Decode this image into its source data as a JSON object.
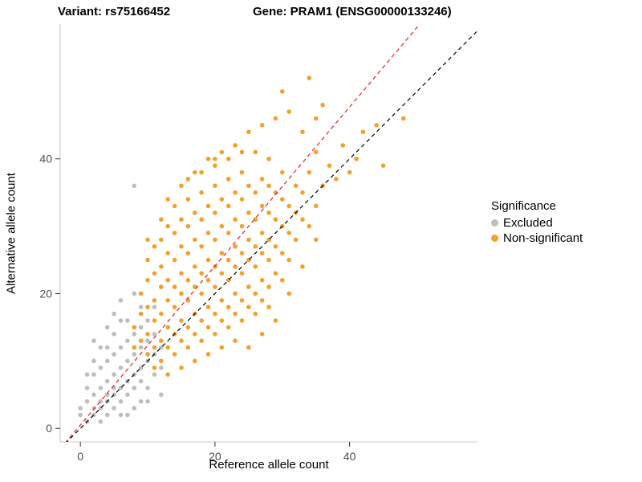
{
  "titles": {
    "left": "Variant: rs75166452",
    "right": "Gene: PRAM1 (ENSG00000133246)"
  },
  "legend": {
    "title": "Significance",
    "items": [
      {
        "label": "Excluded",
        "color": "#BEBEBE"
      },
      {
        "label": "Non-significant",
        "color": "#F5A02A"
      }
    ]
  },
  "chart_data": {
    "type": "scatter",
    "title": "Variant: rs75166452 | Gene: PRAM1 (ENSG00000133246)",
    "xlabel": "Reference allele count",
    "ylabel": "Alternative allele count",
    "xlim": [
      -3,
      59
    ],
    "ylim": [
      -2,
      60
    ],
    "x_ticks": [
      0,
      20,
      40
    ],
    "y_ticks": [
      0,
      20,
      40
    ],
    "grid": false,
    "legend_position": "right",
    "point_radius": 2.8,
    "axis_line_color": "#C9C9C9",
    "tick_color": "#333333",
    "tick_label_color": "#4D4D4D",
    "lines": [
      {
        "name": "identity-line",
        "color": "#000000",
        "dash": "5,4",
        "slope": 1,
        "intercept": 0
      },
      {
        "name": "fit-line",
        "color": "#E02020",
        "dash": "5,4",
        "slope": 1.18,
        "intercept": 0.5
      }
    ],
    "series": [
      {
        "name": "Excluded",
        "color": "#BEBEBE",
        "points": [
          [
            0,
            2
          ],
          [
            0,
            3
          ],
          [
            1,
            1
          ],
          [
            1,
            4
          ],
          [
            1,
            6
          ],
          [
            2,
            2
          ],
          [
            2,
            5
          ],
          [
            2,
            8
          ],
          [
            2,
            3
          ],
          [
            3,
            3
          ],
          [
            3,
            6
          ],
          [
            3,
            9
          ],
          [
            3,
            1
          ],
          [
            4,
            4
          ],
          [
            4,
            7
          ],
          [
            4,
            10
          ],
          [
            4,
            2
          ],
          [
            4,
            12
          ],
          [
            5,
            5
          ],
          [
            5,
            8
          ],
          [
            5,
            3
          ],
          [
            5,
            11
          ],
          [
            5,
            14
          ],
          [
            6,
            6
          ],
          [
            6,
            9
          ],
          [
            6,
            4
          ],
          [
            6,
            12
          ],
          [
            6,
            2
          ],
          [
            7,
            7
          ],
          [
            7,
            10
          ],
          [
            7,
            5
          ],
          [
            7,
            13
          ],
          [
            7,
            16
          ],
          [
            8,
            8
          ],
          [
            8,
            11
          ],
          [
            8,
            6
          ],
          [
            8,
            14
          ],
          [
            8,
            3
          ],
          [
            8,
            36
          ],
          [
            9,
            9
          ],
          [
            9,
            12
          ],
          [
            9,
            7
          ],
          [
            9,
            15
          ],
          [
            9,
            18
          ],
          [
            10,
            10
          ],
          [
            10,
            6
          ],
          [
            10,
            13
          ],
          [
            10,
            4
          ],
          [
            11,
            8
          ],
          [
            11,
            11
          ],
          [
            11,
            14
          ],
          [
            12,
            9
          ],
          [
            12,
            5
          ],
          [
            3,
            12
          ],
          [
            2,
            10
          ],
          [
            4,
            15
          ],
          [
            5,
            17
          ],
          [
            6,
            16
          ],
          [
            7,
            2
          ],
          [
            9,
            4
          ],
          [
            10,
            16
          ],
          [
            11,
            18
          ],
          [
            12,
            12
          ],
          [
            1,
            8
          ],
          [
            2,
            13
          ],
          [
            6,
            19
          ],
          [
            8,
            20
          ],
          [
            5,
            6
          ],
          [
            4,
            5
          ],
          [
            3,
            4
          ]
        ]
      },
      {
        "name": "Non-significant",
        "color": "#F5A02A",
        "points": [
          [
            8,
            12
          ],
          [
            8,
            15
          ],
          [
            9,
            13
          ],
          [
            9,
            17
          ],
          [
            9,
            20
          ],
          [
            10,
            11
          ],
          [
            10,
            14
          ],
          [
            10,
            18
          ],
          [
            10,
            22
          ],
          [
            10,
            25
          ],
          [
            11,
            12
          ],
          [
            11,
            16
          ],
          [
            11,
            19
          ],
          [
            11,
            23
          ],
          [
            11,
            27
          ],
          [
            12,
            10
          ],
          [
            12,
            13
          ],
          [
            12,
            17
          ],
          [
            12,
            21
          ],
          [
            12,
            24
          ],
          [
            12,
            28
          ],
          [
            13,
            12
          ],
          [
            13,
            15
          ],
          [
            13,
            19
          ],
          [
            13,
            22
          ],
          [
            13,
            26
          ],
          [
            13,
            30
          ],
          [
            14,
            11
          ],
          [
            14,
            14
          ],
          [
            14,
            18
          ],
          [
            14,
            21
          ],
          [
            14,
            25
          ],
          [
            14,
            29
          ],
          [
            15,
            13
          ],
          [
            15,
            16
          ],
          [
            15,
            20
          ],
          [
            15,
            23
          ],
          [
            15,
            27
          ],
          [
            15,
            31
          ],
          [
            16,
            12
          ],
          [
            16,
            15
          ],
          [
            16,
            19
          ],
          [
            16,
            22
          ],
          [
            16,
            26
          ],
          [
            16,
            30
          ],
          [
            16,
            34
          ],
          [
            17,
            14
          ],
          [
            17,
            17
          ],
          [
            17,
            21
          ],
          [
            17,
            24
          ],
          [
            17,
            28
          ],
          [
            17,
            32
          ],
          [
            18,
            13
          ],
          [
            18,
            16
          ],
          [
            18,
            20
          ],
          [
            18,
            23
          ],
          [
            18,
            27
          ],
          [
            18,
            31
          ],
          [
            18,
            35
          ],
          [
            19,
            15
          ],
          [
            19,
            18
          ],
          [
            19,
            22
          ],
          [
            19,
            25
          ],
          [
            19,
            29
          ],
          [
            19,
            33
          ],
          [
            20,
            14
          ],
          [
            20,
            17
          ],
          [
            20,
            21
          ],
          [
            20,
            24
          ],
          [
            20,
            28
          ],
          [
            20,
            32
          ],
          [
            20,
            36
          ],
          [
            20,
            40
          ],
          [
            21,
            16
          ],
          [
            21,
            19
          ],
          [
            21,
            23
          ],
          [
            21,
            26
          ],
          [
            21,
            30
          ],
          [
            21,
            34
          ],
          [
            22,
            15
          ],
          [
            22,
            18
          ],
          [
            22,
            22
          ],
          [
            22,
            25
          ],
          [
            22,
            29
          ],
          [
            22,
            33
          ],
          [
            22,
            37
          ],
          [
            23,
            17
          ],
          [
            23,
            20
          ],
          [
            23,
            24
          ],
          [
            23,
            27
          ],
          [
            23,
            31
          ],
          [
            23,
            35
          ],
          [
            24,
            16
          ],
          [
            24,
            19
          ],
          [
            24,
            23
          ],
          [
            24,
            26
          ],
          [
            24,
            30
          ],
          [
            24,
            34
          ],
          [
            24,
            38
          ],
          [
            25,
            18
          ],
          [
            25,
            21
          ],
          [
            25,
            25
          ],
          [
            25,
            28
          ],
          [
            25,
            32
          ],
          [
            25,
            36
          ],
          [
            26,
            17
          ],
          [
            26,
            20
          ],
          [
            26,
            24
          ],
          [
            26,
            27
          ],
          [
            26,
            31
          ],
          [
            26,
            35
          ],
          [
            27,
            19
          ],
          [
            27,
            22
          ],
          [
            27,
            26
          ],
          [
            27,
            29
          ],
          [
            27,
            33
          ],
          [
            27,
            37
          ],
          [
            28,
            18
          ],
          [
            28,
            21
          ],
          [
            28,
            25
          ],
          [
            28,
            28
          ],
          [
            28,
            32
          ],
          [
            28,
            36
          ],
          [
            29,
            23
          ],
          [
            29,
            27
          ],
          [
            29,
            31
          ],
          [
            29,
            35
          ],
          [
            30,
            22
          ],
          [
            30,
            26
          ],
          [
            30,
            30
          ],
          [
            30,
            34
          ],
          [
            30,
            38
          ],
          [
            31,
            25
          ],
          [
            31,
            29
          ],
          [
            31,
            33
          ],
          [
            32,
            28
          ],
          [
            32,
            32
          ],
          [
            32,
            36
          ],
          [
            33,
            31
          ],
          [
            33,
            35
          ],
          [
            34,
            30
          ],
          [
            34,
            38
          ],
          [
            35,
            33
          ],
          [
            35,
            41
          ],
          [
            36,
            36
          ],
          [
            37,
            39
          ],
          [
            38,
            37
          ],
          [
            39,
            42
          ],
          [
            40,
            38
          ],
          [
            41,
            40
          ],
          [
            34,
            52
          ],
          [
            36,
            48
          ],
          [
            31,
            47
          ],
          [
            28,
            40
          ],
          [
            26,
            41
          ],
          [
            24,
            41
          ],
          [
            22,
            40
          ],
          [
            20,
            39
          ],
          [
            18,
            38
          ],
          [
            45,
            39
          ],
          [
            44,
            45
          ],
          [
            42,
            44
          ],
          [
            48,
            46
          ],
          [
            16,
            37
          ],
          [
            14,
            33
          ],
          [
            12,
            31
          ],
          [
            10,
            28
          ],
          [
            13,
            34
          ],
          [
            15,
            36
          ],
          [
            17,
            38
          ],
          [
            19,
            40
          ],
          [
            21,
            41
          ],
          [
            23,
            42
          ],
          [
            25,
            44
          ],
          [
            27,
            45
          ],
          [
            29,
            46
          ],
          [
            33,
            44
          ],
          [
            35,
            46
          ],
          [
            30,
            50
          ],
          [
            25,
            12
          ],
          [
            27,
            14
          ],
          [
            29,
            16
          ],
          [
            23,
            13
          ],
          [
            21,
            12
          ],
          [
            19,
            11
          ],
          [
            17,
            10
          ],
          [
            15,
            9
          ],
          [
            13,
            8
          ],
          [
            11,
            9
          ],
          [
            31,
            20
          ],
          [
            33,
            24
          ],
          [
            35,
            28
          ]
        ]
      }
    ]
  }
}
